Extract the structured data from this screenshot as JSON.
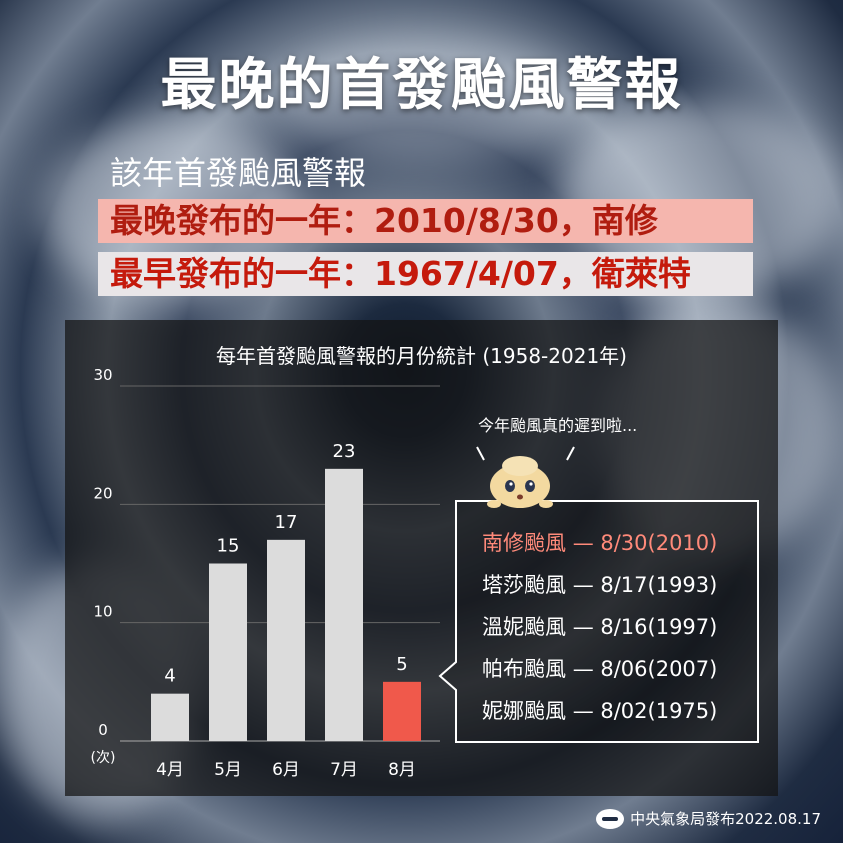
{
  "header": {
    "title": "最晚的首發颱風警報",
    "subtitle": "該年首發颱風警報",
    "latest": "最晚發布的一年：2010/8/30，南修",
    "earliest": "最早發布的一年：1967/4/07，衛萊特"
  },
  "colors": {
    "bar": "#dcdcdc",
    "bar_highlight": "#f0594b",
    "latest_bg": "#f5b6ae",
    "latest_text": "#b01d10",
    "earliest_bg": "#e9e6e8",
    "earliest_text": "#c51a0c",
    "list_highlight": "#ff8a7a"
  },
  "chart_data": {
    "type": "bar",
    "title": "每年首發颱風警報的月份統計 (1958-2021年)",
    "categories": [
      "4月",
      "5月",
      "6月",
      "7月",
      "8月"
    ],
    "values": [
      4,
      15,
      17,
      23,
      5
    ],
    "highlight_index": 4,
    "ylim": [
      0,
      30
    ],
    "yticks": [
      0,
      10,
      20,
      30
    ],
    "ylabel": "(次)",
    "grid": true
  },
  "callout": {
    "thought": "今年颱風真的遲到啦...",
    "items": [
      {
        "name": "南修颱風",
        "date": "— 8/30(2010)",
        "highlight": true
      },
      {
        "name": "塔莎颱風",
        "date": "— 8/17(1993)",
        "highlight": false
      },
      {
        "name": "溫妮颱風",
        "date": "— 8/16(1997)",
        "highlight": false
      },
      {
        "name": "帕布颱風",
        "date": "— 8/06(2007)",
        "highlight": false
      },
      {
        "name": "妮娜颱風",
        "date": "— 8/02(1975)",
        "highlight": false
      }
    ]
  },
  "footer": {
    "text": "中央氣象局發布2022.08.17",
    "logo_icon": "cwb-logo-icon"
  }
}
